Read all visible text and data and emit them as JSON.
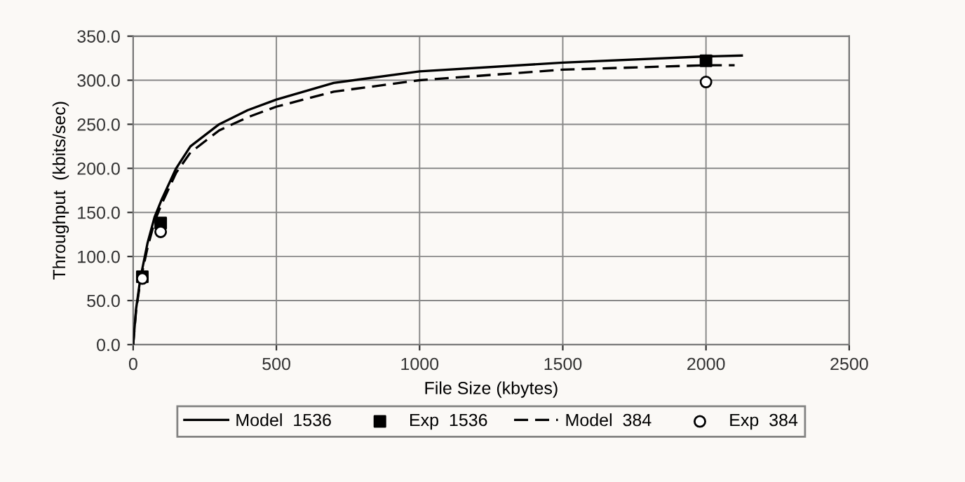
{
  "chart_data": {
    "type": "line",
    "xlabel": "File Size (kbytes)",
    "ylabel": "Throughput  (kbits/sec)",
    "xlim": [
      0,
      2500
    ],
    "xticks": [
      0,
      500,
      1000,
      1500,
      2000,
      2500
    ],
    "ylim": [
      0,
      350
    ],
    "yticks": [
      {
        "value": 0,
        "label": "0.0"
      },
      {
        "value": 50,
        "label": "50.0"
      },
      {
        "value": 100,
        "label": "100.0"
      },
      {
        "value": 150,
        "label": "150.0"
      },
      {
        "value": 200,
        "label": "200.0"
      },
      {
        "value": 250,
        "label": "250.0"
      },
      {
        "value": 300,
        "label": "300.0"
      },
      {
        "value": 350,
        "label": "350.0"
      }
    ],
    "grid": true,
    "legend": "bottom",
    "series": [
      {
        "name": "Model  1536",
        "color": "#000000",
        "line_style": "solid",
        "x": [
          0,
          10,
          25,
          50,
          75,
          100,
          150,
          200,
          300,
          400,
          500,
          700,
          1000,
          1500,
          2000,
          2125
        ],
        "values": [
          0,
          40,
          75,
          115,
          145,
          165,
          200,
          225,
          250,
          266,
          278,
          297,
          310,
          320,
          327,
          328
        ]
      },
      {
        "name": "Exp  1536",
        "type": "scatter",
        "marker": "square",
        "color": "#000000",
        "x": [
          32,
          96,
          2000
        ],
        "values": [
          77,
          138,
          322
        ]
      },
      {
        "name": "Model  384",
        "color": "#000000",
        "line_style": "dashed",
        "x": [
          0,
          10,
          25,
          50,
          75,
          100,
          150,
          200,
          300,
          400,
          500,
          700,
          1000,
          1500,
          2000,
          2100
        ],
        "values": [
          0,
          38,
          72,
          110,
          140,
          160,
          195,
          218,
          243,
          258,
          270,
          287,
          300,
          312,
          317,
          317
        ]
      },
      {
        "name": "Exp  384",
        "type": "scatter",
        "marker": "circle",
        "color": "#ffffff",
        "x": [
          32,
          96,
          2000
        ],
        "values": [
          75,
          128,
          298
        ]
      }
    ]
  }
}
